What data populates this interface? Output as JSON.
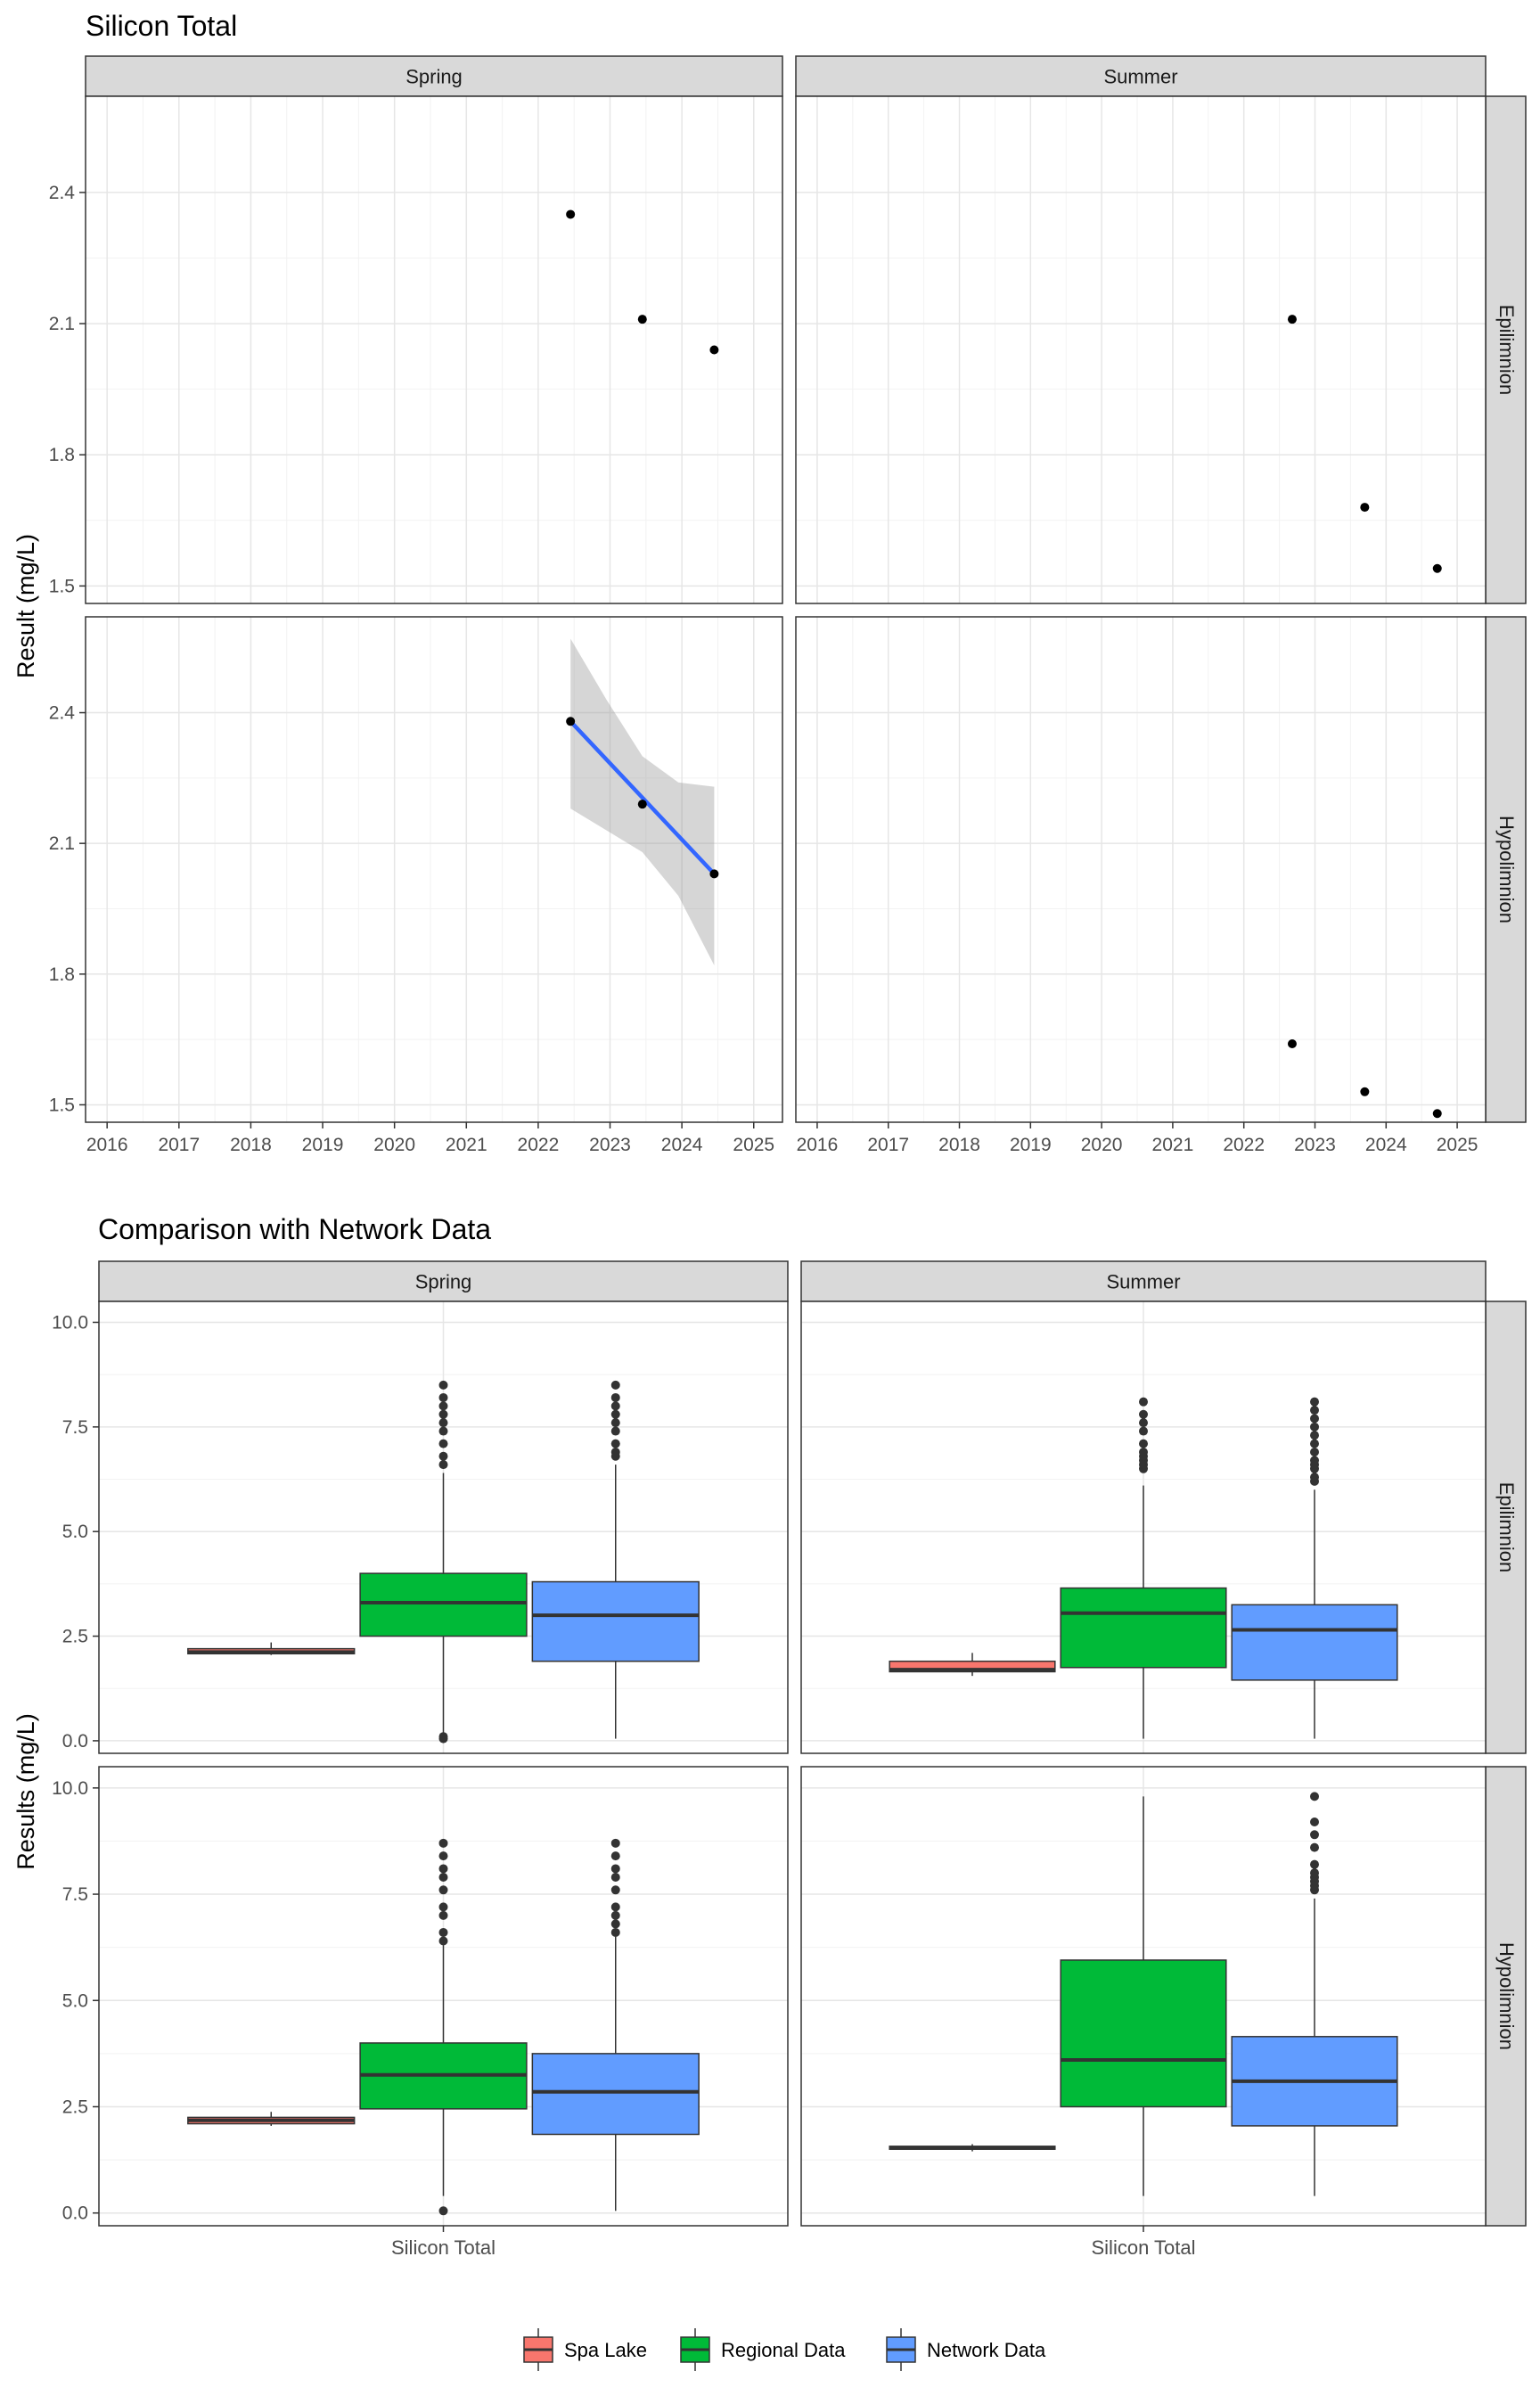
{
  "chart_data": [
    {
      "type": "scatter",
      "title": "Silicon Total",
      "ylabel": "Result (mg/L)",
      "xlabel": "",
      "x_ticks": [
        "2016",
        "2017",
        "2018",
        "2019",
        "2020",
        "2021",
        "2022",
        "2023",
        "2024",
        "2025"
      ],
      "y_ticks": [
        "1.5",
        "1.8",
        "2.1",
        "2.4"
      ],
      "xlim": [
        2015.7,
        2025.4
      ],
      "ylim": [
        1.46,
        2.62
      ],
      "grid": true,
      "column_strips": [
        "Spring",
        "Summer"
      ],
      "row_strips": [
        "Epilimnion",
        "Hypolimnion"
      ],
      "panels": [
        {
          "season": "Spring",
          "layer": "Epilimnion",
          "points": [
            {
              "x": 2022.45,
              "y": 2.35
            },
            {
              "x": 2023.45,
              "y": 2.11
            },
            {
              "x": 2024.45,
              "y": 2.04
            }
          ]
        },
        {
          "season": "Summer",
          "layer": "Epilimnion",
          "points": [
            {
              "x": 2022.68,
              "y": 2.11
            },
            {
              "x": 2023.7,
              "y": 1.68
            },
            {
              "x": 2024.72,
              "y": 1.54
            }
          ]
        },
        {
          "season": "Spring",
          "layer": "Hypolimnion",
          "points": [
            {
              "x": 2022.45,
              "y": 2.38
            },
            {
              "x": 2023.45,
              "y": 2.19
            },
            {
              "x": 2024.45,
              "y": 2.03
            }
          ],
          "trend": {
            "x": [
              2022.45,
              2024.45
            ],
            "y": [
              2.38,
              2.03
            ],
            "ci_x": [
              2022.45,
              2022.95,
              2023.45,
              2023.95,
              2024.45
            ],
            "ci_low": [
              2.18,
              2.13,
              2.08,
              1.98,
              1.82
            ],
            "ci_high": [
              2.57,
              2.43,
              2.3,
              2.24,
              2.23
            ]
          }
        },
        {
          "season": "Summer",
          "layer": "Hypolimnion",
          "points": [
            {
              "x": 2022.68,
              "y": 1.64
            },
            {
              "x": 2023.7,
              "y": 1.53
            },
            {
              "x": 2024.72,
              "y": 1.48
            }
          ]
        }
      ]
    },
    {
      "type": "box",
      "title": "Comparison with Network Data",
      "ylabel": "Results (mg/L)",
      "xlabel": "",
      "category": "Silicon Total",
      "y_ticks": [
        "0.0",
        "2.5",
        "5.0",
        "7.5",
        "10.0"
      ],
      "ylim": [
        -0.3,
        10.5
      ],
      "grid": true,
      "column_strips": [
        "Spring",
        "Summer"
      ],
      "row_strips": [
        "Epilimnion",
        "Hypolimnion"
      ],
      "legend": {
        "position": "bottom",
        "entries": [
          {
            "name": "Spa Lake",
            "color": "#F8766D"
          },
          {
            "name": "Regional Data",
            "color": "#00BA38"
          },
          {
            "name": "Network Data",
            "color": "#619CFF"
          }
        ]
      },
      "panels": [
        {
          "season": "Spring",
          "layer": "Epilimnion",
          "boxes": [
            {
              "group": "Spa Lake",
              "lower_whisker": 2.05,
              "q1": 2.08,
              "median": 2.12,
              "q3": 2.2,
              "upper_whisker": 2.35,
              "outliers": []
            },
            {
              "group": "Regional Data",
              "lower_whisker": 0.1,
              "q1": 2.5,
              "median": 3.3,
              "q3": 4.0,
              "upper_whisker": 6.4,
              "outliers": [
                0.05,
                0.1,
                6.6,
                6.8,
                7.1,
                7.4,
                7.6,
                7.8,
                8.0,
                8.2,
                8.5
              ]
            },
            {
              "group": "Network Data",
              "lower_whisker": 0.05,
              "q1": 1.9,
              "median": 3.0,
              "q3": 3.8,
              "upper_whisker": 6.6,
              "outliers": [
                6.8,
                6.9,
                7.1,
                7.4,
                7.6,
                7.8,
                8.0,
                8.2,
                8.5
              ]
            }
          ]
        },
        {
          "season": "Summer",
          "layer": "Epilimnion",
          "boxes": [
            {
              "group": "Spa Lake",
              "lower_whisker": 1.55,
              "q1": 1.65,
              "median": 1.7,
              "q3": 1.9,
              "upper_whisker": 2.1,
              "outliers": []
            },
            {
              "group": "Regional Data",
              "lower_whisker": 0.05,
              "q1": 1.75,
              "median": 3.05,
              "q3": 3.65,
              "upper_whisker": 6.1,
              "outliers": [
                6.5,
                6.6,
                6.7,
                6.8,
                6.9,
                7.1,
                7.4,
                7.6,
                7.8,
                8.1
              ]
            },
            {
              "group": "Network Data",
              "lower_whisker": 0.05,
              "q1": 1.45,
              "median": 2.65,
              "q3": 3.25,
              "upper_whisker": 6.0,
              "outliers": [
                6.2,
                6.3,
                6.5,
                6.6,
                6.7,
                6.9,
                7.1,
                7.3,
                7.5,
                7.7,
                7.9,
                8.1
              ]
            }
          ]
        },
        {
          "season": "Spring",
          "layer": "Hypolimnion",
          "boxes": [
            {
              "group": "Spa Lake",
              "lower_whisker": 2.05,
              "q1": 2.1,
              "median": 2.18,
              "q3": 2.25,
              "upper_whisker": 2.38,
              "outliers": []
            },
            {
              "group": "Regional Data",
              "lower_whisker": 0.4,
              "q1": 2.45,
              "median": 3.25,
              "q3": 4.0,
              "upper_whisker": 6.3,
              "outliers": [
                0.05,
                6.4,
                6.6,
                7.0,
                7.2,
                7.6,
                7.9,
                8.1,
                8.4,
                8.7
              ]
            },
            {
              "group": "Network Data",
              "lower_whisker": 0.05,
              "q1": 1.85,
              "median": 2.85,
              "q3": 3.75,
              "upper_whisker": 6.5,
              "outliers": [
                6.6,
                6.8,
                7.0,
                7.2,
                7.6,
                7.9,
                8.1,
                8.4,
                8.7
              ]
            }
          ]
        },
        {
          "season": "Summer",
          "layer": "Hypolimnion",
          "boxes": [
            {
              "group": "Spa Lake",
              "lower_whisker": 1.45,
              "q1": 1.5,
              "median": 1.53,
              "q3": 1.57,
              "upper_whisker": 1.62,
              "outliers": []
            },
            {
              "group": "Regional Data",
              "lower_whisker": 0.4,
              "q1": 2.5,
              "median": 3.6,
              "q3": 5.95,
              "upper_whisker": 9.8,
              "outliers": []
            },
            {
              "group": "Network Data",
              "lower_whisker": 0.4,
              "q1": 2.05,
              "median": 3.1,
              "q3": 4.15,
              "upper_whisker": 7.4,
              "outliers": [
                7.6,
                7.7,
                7.8,
                7.9,
                8.0,
                8.2,
                8.6,
                8.9,
                9.2,
                9.8
              ]
            }
          ]
        }
      ]
    }
  ]
}
